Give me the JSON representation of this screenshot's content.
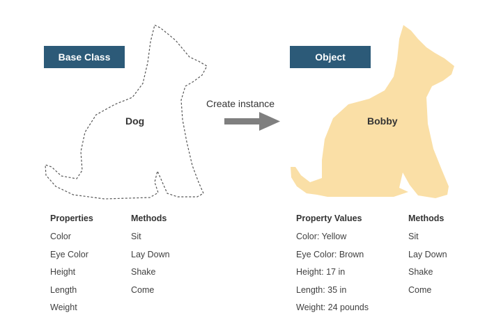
{
  "base_badge": "Base Class",
  "object_badge": "Object",
  "arrow_label": "Create instance",
  "dog_label": "Dog",
  "bobby_label": "Bobby",
  "base_table": {
    "properties_header": "Properties",
    "properties": [
      "Color",
      "Eye Color",
      "Height",
      "Length",
      "Weight"
    ],
    "methods_header": "Methods",
    "methods": [
      "Sit",
      "Lay Down",
      "Shake",
      "Come"
    ]
  },
  "object_table": {
    "values_header": "Property Values",
    "values": [
      "Color: Yellow",
      "Eye Color: Brown",
      "Height: 17 in",
      "Length: 35 in",
      "Weight: 24 pounds"
    ],
    "methods_header": "Methods",
    "methods": [
      "Sit",
      "Lay Down",
      "Shake",
      "Come"
    ]
  },
  "colors": {
    "badge": "#2c5a78",
    "dog_fill": "#fadfa6",
    "arrow": "#7f7f7f"
  }
}
